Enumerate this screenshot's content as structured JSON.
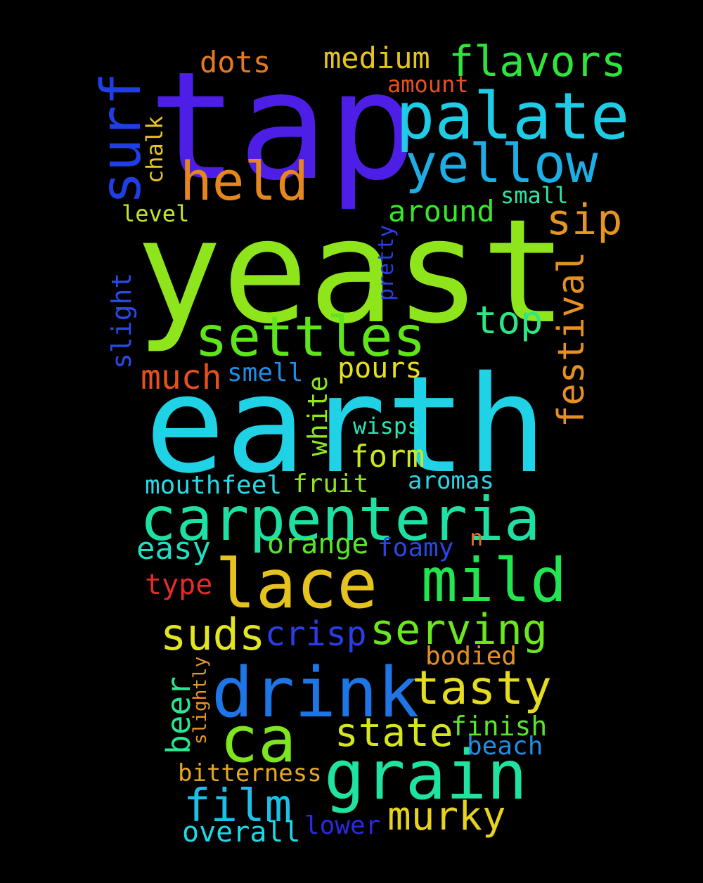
{
  "words": [
    {
      "text": "yeast",
      "color": "#8fe51b"
    },
    {
      "text": "earth",
      "color": "#1fd2e6"
    },
    {
      "text": "tap",
      "color": "#4d1fe6"
    },
    {
      "text": "carpenteria",
      "color": "#1fe0a3"
    },
    {
      "text": "palate",
      "color": "#1fcce6"
    },
    {
      "text": "drink",
      "color": "#1e76e6"
    },
    {
      "text": "settles",
      "color": "#5fe61b"
    },
    {
      "text": "grain",
      "color": "#1fe39e"
    },
    {
      "text": "lace",
      "color": "#e6c21f"
    },
    {
      "text": "mild",
      "color": "#22e650"
    },
    {
      "text": "yellow",
      "color": "#1eaee6"
    },
    {
      "text": "held",
      "color": "#e6861f"
    },
    {
      "text": "surf",
      "color": "#1f3ee6"
    },
    {
      "text": "ca",
      "color": "#7ee61f"
    },
    {
      "text": "tasty",
      "color": "#e6dc1f"
    },
    {
      "text": "serving",
      "color": "#6ce61f"
    },
    {
      "text": "flavors",
      "color": "#2ee63b"
    },
    {
      "text": "suds",
      "color": "#e2e61f"
    },
    {
      "text": "film",
      "color": "#1fbee6"
    },
    {
      "text": "state",
      "color": "#d5e61f"
    },
    {
      "text": "murky",
      "color": "#e6d21f"
    },
    {
      "text": "festival",
      "color": "#e6911f"
    },
    {
      "text": "sip",
      "color": "#e6961f"
    },
    {
      "text": "top",
      "color": "#2ee683"
    },
    {
      "text": "much",
      "color": "#e6501f"
    },
    {
      "text": "medium",
      "color": "#e6c41f"
    },
    {
      "text": "crisp",
      "color": "#2a3ee6"
    },
    {
      "text": "around",
      "color": "#39e62a"
    },
    {
      "text": "dots",
      "color": "#e6791f"
    },
    {
      "text": "pours",
      "color": "#e6e01f"
    },
    {
      "text": "form",
      "color": "#cce61f"
    },
    {
      "text": "easy",
      "color": "#1fe0c4"
    },
    {
      "text": "orange",
      "color": "#56e62a"
    },
    {
      "text": "finish",
      "color": "#5ce62a"
    },
    {
      "text": "type",
      "color": "#e62a2a"
    },
    {
      "text": "overall",
      "color": "#1fd9e6"
    },
    {
      "text": "beer",
      "color": "#2ae68f"
    },
    {
      "text": "bodied",
      "color": "#e6911f"
    },
    {
      "text": "smell",
      "color": "#1e8ee6"
    },
    {
      "text": "slight",
      "color": "#2a4ae6"
    },
    {
      "text": "white",
      "color": "#8fe61f"
    },
    {
      "text": "mouthfeel",
      "color": "#2ad9e6"
    },
    {
      "text": "fruit",
      "color": "#8fe61f"
    },
    {
      "text": "aromas",
      "color": "#2ad6e6"
    },
    {
      "text": "foamy",
      "color": "#2a47e6"
    },
    {
      "text": "lower",
      "color": "#2a2ae6"
    },
    {
      "text": "bitterness",
      "color": "#e6a81f"
    },
    {
      "text": "beach",
      "color": "#1e8ee6"
    },
    {
      "text": "amount",
      "color": "#e6501f"
    },
    {
      "text": "level",
      "color": "#c4e62a"
    },
    {
      "text": "small",
      "color": "#2ae6a3"
    },
    {
      "text": "wisps",
      "color": "#2ae6b6"
    },
    {
      "text": "chalk",
      "color": "#e6c42a"
    },
    {
      "text": "pretty",
      "color": "#2a3ee6"
    },
    {
      "text": "slightly",
      "color": "#e6962a"
    },
    {
      "text": "n",
      "color": "#e66a2a"
    }
  ]
}
